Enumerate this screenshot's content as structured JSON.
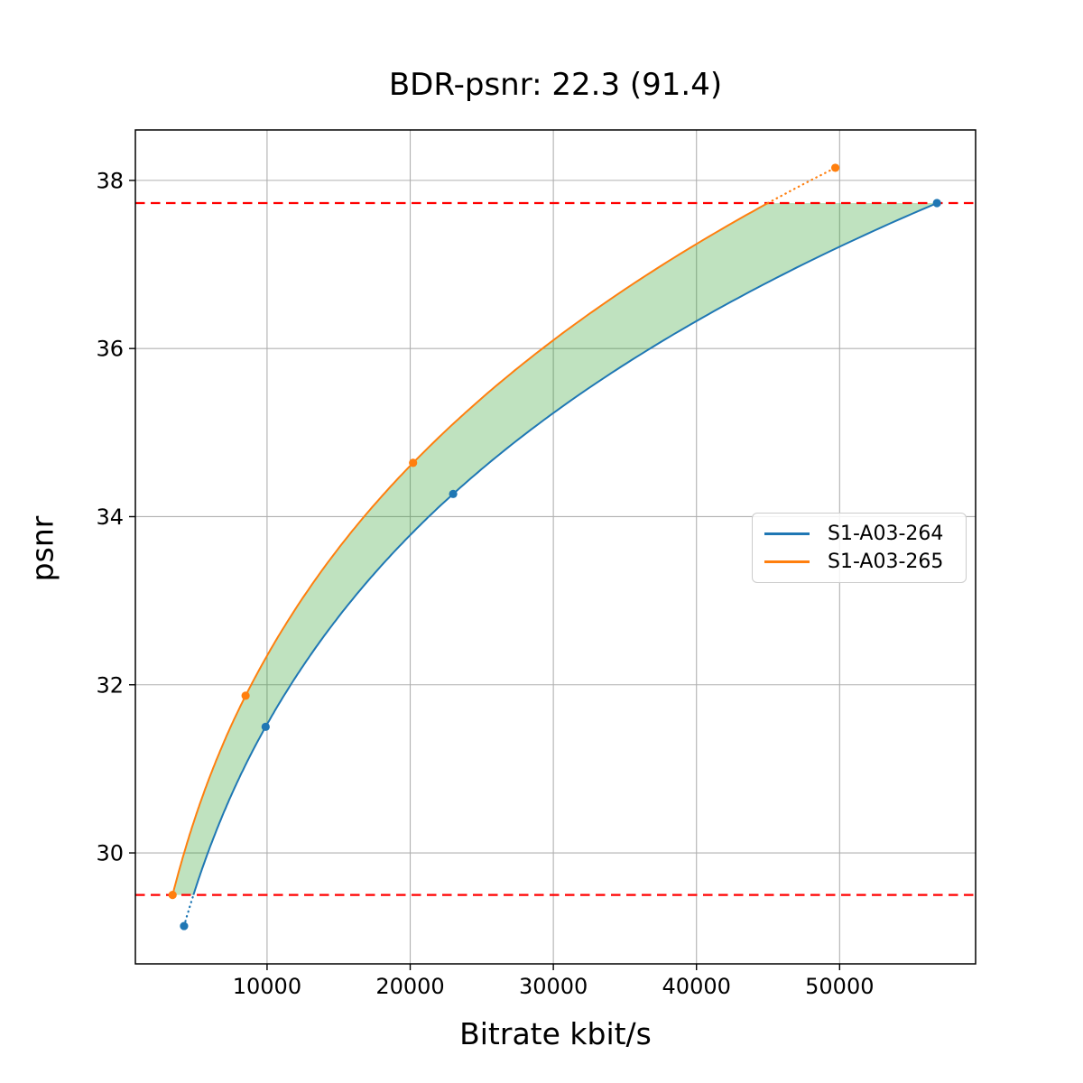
{
  "chart_data": {
    "type": "line",
    "title": "BDR-psnr: 22.3 (91.4)",
    "xlabel": "Bitrate kbit/s",
    "ylabel": "psnr",
    "xlim": [
      800,
      59500
    ],
    "ylim": [
      28.68,
      38.6
    ],
    "xticks": [
      10000,
      20000,
      30000,
      40000,
      50000
    ],
    "yticks": [
      30,
      32,
      34,
      36,
      38
    ],
    "grid": true,
    "grid_color": "#b0b0b0",
    "axis_color": "#000000",
    "series": [
      {
        "name": "S1-A03-264",
        "color": "#1f77b4",
        "points": [
          [
            4200,
            29.13
          ],
          [
            9900,
            31.5
          ],
          [
            23000,
            34.27
          ],
          [
            56800,
            37.73
          ]
        ]
      },
      {
        "name": "S1-A03-265",
        "color": "#ff7f0e",
        "points": [
          [
            3400,
            29.5
          ],
          [
            8500,
            31.87
          ],
          [
            20200,
            34.64
          ],
          [
            49700,
            38.15
          ]
        ]
      }
    ],
    "hlines": [
      {
        "y": 37.73,
        "color": "#ff0000",
        "style": "dashed"
      },
      {
        "y": 29.5,
        "color": "#ff0000",
        "style": "dashed"
      }
    ],
    "shaded_band": {
      "upper_series": "S1-A03-265",
      "lower_series": "S1-A03-264",
      "y_range": [
        29.5,
        37.73
      ],
      "color": "#2ca02c",
      "opacity": 0.3
    },
    "legend": {
      "position": "center-right",
      "entries": [
        "S1-A03-264",
        "S1-A03-265"
      ]
    }
  }
}
